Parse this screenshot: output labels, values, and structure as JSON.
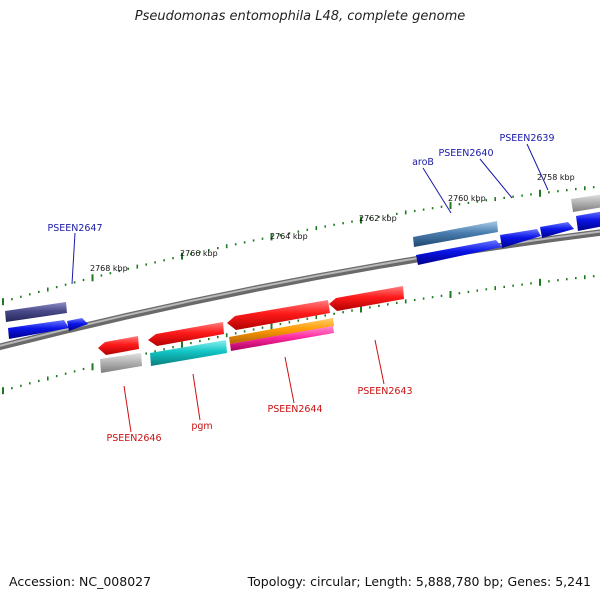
{
  "title": "Pseudomonas entomophila L48, complete genome",
  "footer": {
    "accession": "Accession: NC_008027",
    "summary": "Topology: circular; Length: 5,888,780 bp; Genes: 5,241"
  },
  "scale_labels": [
    "2758 kbp",
    "2760 kbp",
    "2762 kbp",
    "2764 kbp",
    "2766 kbp",
    "2768 kbp"
  ],
  "gene_labels_top": [
    "PSEEN2639",
    "PSEEN2640",
    "aroB",
    "PSEEN2647"
  ],
  "gene_labels_bottom": [
    "PSEEN2643",
    "PSEEN2644",
    "pgm",
    "PSEEN2646"
  ],
  "colors": {
    "backbone": "#8a8a8a",
    "tick": "#1e7a1e",
    "label_top": "#1a1aa8",
    "label_bottom": "#cc1111",
    "red": "#ff1a1a",
    "blue": "#0a14e6",
    "cyan": "#12c4c4",
    "grey": "#b4b4b4",
    "orange": "#ff9a00",
    "pink": "#ff2aa0",
    "steel": "#4a7eb0",
    "navy": "#4a4a8a"
  }
}
